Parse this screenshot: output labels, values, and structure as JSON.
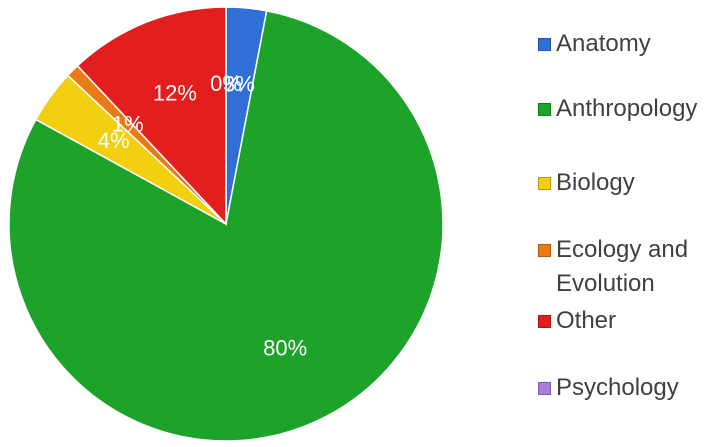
{
  "chart_data": {
    "type": "pie",
    "categories": [
      "Anatomy",
      "Anthropology",
      "Biology",
      "Ecology and Evolution",
      "Other",
      "Psychology"
    ],
    "values": [
      3,
      80,
      4,
      1,
      12,
      0
    ],
    "value_labels": [
      "3%",
      "80%",
      "4%",
      "1%",
      "12%",
      "0%"
    ],
    "colors": [
      "#2f6fd6",
      "#1ea32a",
      "#f2cf0f",
      "#ec7a12",
      "#e31e1e",
      "#a57fd8"
    ],
    "legend": "right"
  }
}
